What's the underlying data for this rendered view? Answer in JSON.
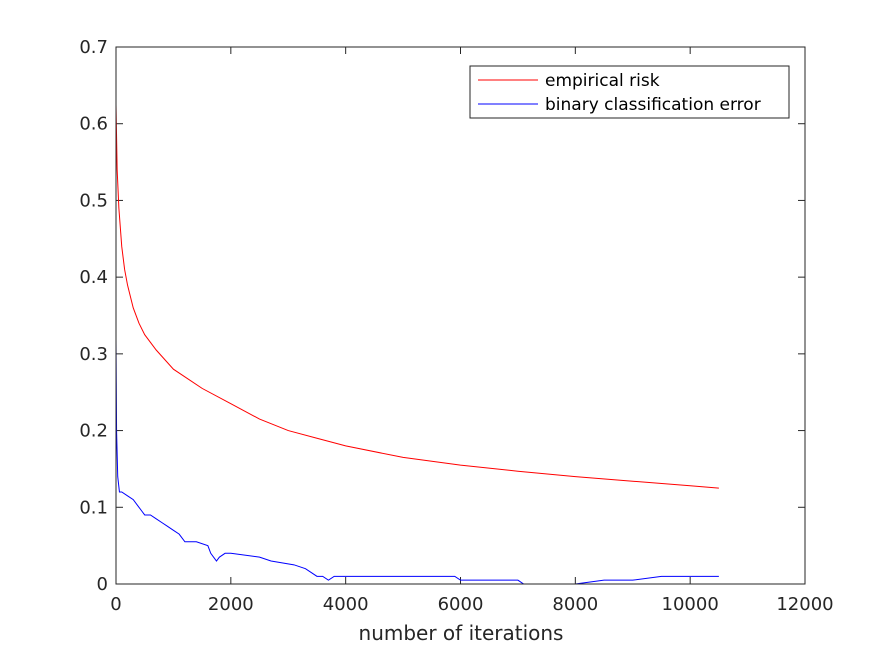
{
  "chart_data": {
    "type": "line",
    "title": "",
    "xlabel": "number of iterations",
    "ylabel": "",
    "xlim": [
      0,
      12000
    ],
    "ylim": [
      0,
      0.7
    ],
    "xticks": [
      0,
      2000,
      4000,
      6000,
      8000,
      10000,
      12000
    ],
    "xtick_labels": [
      "0",
      "2000",
      "4000",
      "6000",
      "8000",
      "10000",
      "12000"
    ],
    "yticks": [
      0,
      0.1,
      0.2,
      0.3,
      0.4,
      0.5,
      0.6,
      0.7
    ],
    "ytick_labels": [
      "0",
      "0.1",
      "0.2",
      "0.3",
      "0.4",
      "0.5",
      "0.6",
      "0.7"
    ],
    "grid": false,
    "legend_position": "top-right",
    "series": [
      {
        "name": "empirical risk",
        "color": "#ff0000",
        "x": [
          0,
          20,
          50,
          100,
          150,
          200,
          300,
          400,
          500,
          700,
          1000,
          1500,
          2000,
          2500,
          3000,
          3500,
          4000,
          5000,
          6000,
          7000,
          8000,
          9000,
          10000,
          10500
        ],
        "y": [
          0.625,
          0.54,
          0.49,
          0.44,
          0.41,
          0.39,
          0.36,
          0.34,
          0.325,
          0.305,
          0.28,
          0.255,
          0.235,
          0.215,
          0.2,
          0.19,
          0.18,
          0.165,
          0.155,
          0.147,
          0.14,
          0.134,
          0.128,
          0.125
        ]
      },
      {
        "name": "binary classification error",
        "color": "#0000ff",
        "x": [
          0,
          10,
          30,
          60,
          100,
          200,
          300,
          400,
          450,
          500,
          600,
          700,
          800,
          900,
          1000,
          1100,
          1200,
          1400,
          1600,
          1650,
          1700,
          1750,
          1800,
          1900,
          2000,
          2500,
          2700,
          3100,
          3300,
          3500,
          3600,
          3700,
          3800,
          4000,
          5900,
          6000,
          6500,
          7000,
          7100,
          8000,
          8500,
          9000,
          9500,
          10500
        ],
        "y": [
          0.32,
          0.2,
          0.14,
          0.12,
          0.12,
          0.115,
          0.11,
          0.1,
          0.095,
          0.09,
          0.09,
          0.085,
          0.08,
          0.075,
          0.07,
          0.065,
          0.055,
          0.055,
          0.05,
          0.04,
          0.035,
          0.03,
          0.035,
          0.04,
          0.04,
          0.035,
          0.03,
          0.025,
          0.02,
          0.01,
          0.01,
          0.005,
          0.01,
          0.01,
          0.01,
          0.005,
          0.005,
          0.005,
          0.0,
          0.0,
          0.005,
          0.005,
          0.01,
          0.01
        ]
      }
    ]
  }
}
